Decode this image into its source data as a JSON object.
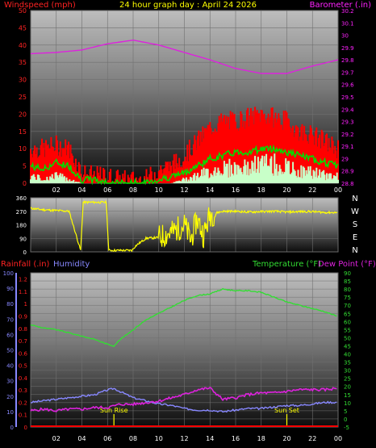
{
  "header": {
    "title": "24 hour graph day : April 24 2026",
    "left_label": "Windspeed (mph)",
    "right_label": "Barometer (.in)"
  },
  "colors": {
    "wind_gust": "#ff0000",
    "wind_avg": "#00dd00",
    "wind_min": "#c8ffc8",
    "barometer": "#dd22dd",
    "direction": "#ffff00",
    "temperature": "#33dd33",
    "dewpoint": "#dd22dd",
    "humidity": "#8888ff",
    "rainfall": "#ff0000",
    "sun_marker": "#ffff00",
    "grid": "#707070"
  },
  "chart_data": [
    {
      "type": "line",
      "title": "24 hour graph day : April 24 2026",
      "x_ticks": [
        "02",
        "04",
        "06",
        "08",
        "10",
        "12",
        "14",
        "16",
        "18",
        "20",
        "22",
        "00"
      ],
      "y_left": {
        "label": "Windspeed (mph)",
        "ticks": [
          0,
          5,
          10,
          15,
          20,
          25,
          30,
          35,
          40,
          45,
          50
        ],
        "range": [
          0,
          50
        ]
      },
      "y_right": {
        "label": "Barometer (.in)",
        "ticks": [
          "28.8",
          "28.9",
          "29",
          "29.1",
          "29.2",
          "29.3",
          "29.4",
          "29.5",
          "29.6",
          "29.7",
          "29.8",
          "29.9",
          "30",
          "30.1",
          "30.2"
        ],
        "range": [
          28.8,
          30.2
        ]
      },
      "series": [
        {
          "name": "Barometer",
          "axis": "right",
          "x": [
            0,
            2,
            4,
            6,
            8,
            10,
            12,
            14,
            16,
            18,
            20,
            22,
            24
          ],
          "values": [
            29.85,
            29.86,
            29.88,
            29.93,
            29.96,
            29.92,
            29.86,
            29.8,
            29.73,
            29.69,
            29.69,
            29.75,
            29.8
          ]
        },
        {
          "name": "Gust",
          "axis": "left",
          "x": [
            0,
            1,
            2,
            3,
            4,
            5,
            6,
            7,
            8,
            9,
            10,
            11,
            12,
            13,
            14,
            15,
            16,
            17,
            18,
            19,
            20,
            21,
            22,
            23,
            24
          ],
          "values": [
            10,
            10,
            11,
            10,
            3,
            2,
            2,
            1,
            1,
            1,
            4,
            5,
            8,
            12,
            16,
            18,
            18,
            19,
            20,
            19,
            18,
            15,
            14,
            12,
            10
          ]
        },
        {
          "name": "Average",
          "axis": "left",
          "x": [
            0,
            1,
            2,
            3,
            4,
            5,
            6,
            7,
            8,
            9,
            10,
            11,
            12,
            13,
            14,
            15,
            16,
            17,
            18,
            19,
            20,
            21,
            22,
            23,
            24
          ],
          "values": [
            5,
            4,
            6,
            5,
            1,
            1,
            0,
            0,
            0,
            0,
            1,
            2,
            3,
            5,
            7,
            8,
            9,
            9,
            10,
            10,
            9,
            8,
            7,
            6,
            5
          ]
        },
        {
          "name": "Minimum",
          "axis": "left",
          "x": [
            0,
            1,
            2,
            3,
            4,
            5,
            6,
            7,
            8,
            9,
            10,
            11,
            12,
            13,
            14,
            15,
            16,
            17,
            18,
            19,
            20,
            21,
            22,
            23,
            24
          ],
          "values": [
            2,
            1,
            2,
            1,
            0,
            0,
            0,
            0,
            0,
            0,
            0,
            0,
            1,
            2,
            3,
            4,
            4,
            4,
            5,
            5,
            4,
            3,
            3,
            2,
            2
          ]
        }
      ]
    },
    {
      "type": "scatter",
      "title": "",
      "x_ticks": [
        "02",
        "04",
        "06",
        "08",
        "10",
        "12",
        "14",
        "16",
        "18",
        "20",
        "22",
        "00"
      ],
      "y_left": {
        "ticks": [
          0,
          90,
          180,
          270,
          360
        ],
        "range": [
          0,
          360
        ]
      },
      "y_right": {
        "ticks": [
          "N",
          "W",
          "S",
          "E",
          "N"
        ]
      },
      "series": [
        {
          "name": "Wind direction",
          "x": [
            0,
            1,
            2,
            3,
            3.9,
            4.1,
            5,
            5.9,
            6.1,
            7,
            7.9,
            8.2,
            9,
            10,
            11,
            12,
            12.5,
            13,
            13.5,
            14,
            15,
            16,
            17,
            18,
            19,
            20,
            21,
            22,
            23,
            24
          ],
          "values": [
            290,
            280,
            275,
            270,
            10,
            330,
            330,
            330,
            10,
            10,
            10,
            40,
            90,
            95,
            130,
            180,
            80,
            220,
            110,
            250,
            270,
            270,
            265,
            268,
            270,
            265,
            268,
            268,
            262,
            262
          ]
        }
      ]
    },
    {
      "type": "line",
      "title": "",
      "x_ticks": [
        "02",
        "04",
        "06",
        "08",
        "10",
        "12",
        "14",
        "16",
        "18",
        "20",
        "22",
        "00"
      ],
      "legend": [
        "Rainfall (.in)",
        "Humidity",
        "Temperature (°F)",
        "Dew Point (°F)"
      ],
      "y_rain": {
        "ticks": [
          "0",
          "0.1",
          "0.2",
          "0.3",
          "0.4",
          "0.5",
          "0.6",
          "0.7",
          "0.8",
          "0.9",
          "1",
          "1.1",
          "1.2"
        ],
        "range": [
          0,
          1.25
        ]
      },
      "y_humidity": {
        "ticks": [
          0,
          10,
          20,
          30,
          40,
          50,
          60,
          70,
          80,
          90,
          100
        ],
        "range": [
          0,
          100
        ]
      },
      "y_temp": {
        "ticks": [
          -5,
          0,
          5,
          10,
          15,
          20,
          25,
          30,
          35,
          40,
          45,
          50,
          55,
          60,
          65,
          70,
          75,
          80,
          85,
          90
        ],
        "range": [
          -5,
          90
        ]
      },
      "annotations": [
        {
          "label": "Sun Rise",
          "x": 6.5
        },
        {
          "label": "Sun Set",
          "x": 20
        }
      ],
      "series": [
        {
          "name": "Temperature",
          "axis": "temp",
          "x": [
            0,
            1,
            2,
            3,
            4,
            5,
            6,
            6.5,
            7,
            8,
            9,
            10,
            11,
            12,
            13,
            14,
            15,
            16,
            17,
            18,
            19,
            20,
            21,
            22,
            23,
            24
          ],
          "values": [
            58,
            56,
            55,
            53,
            51,
            49,
            46,
            45,
            49,
            55,
            61,
            65,
            69,
            73,
            76,
            77,
            80,
            79,
            79,
            78,
            75,
            72,
            70,
            68,
            66,
            63
          ]
        },
        {
          "name": "Dew Point",
          "axis": "temp",
          "x": [
            0,
            1,
            2,
            3,
            4,
            5,
            6,
            7,
            8,
            9,
            10,
            11,
            12,
            13,
            14,
            15,
            16,
            17,
            18,
            19,
            20,
            21,
            22,
            23,
            24
          ],
          "values": [
            5,
            6,
            5,
            6,
            6,
            7,
            7,
            9,
            9,
            10,
            11,
            13,
            15,
            18,
            19,
            12,
            13,
            15,
            16,
            16,
            17,
            18,
            18,
            18,
            19
          ]
        },
        {
          "name": "Humidity",
          "axis": "humidity",
          "x": [
            0,
            1,
            2,
            3,
            4,
            5,
            6,
            6.5,
            7,
            8,
            9,
            10,
            11,
            12,
            13,
            14,
            15,
            16,
            17,
            18,
            19,
            20,
            21,
            22,
            23,
            24
          ],
          "values": [
            16,
            17,
            18,
            19,
            20,
            21,
            24,
            25,
            23,
            19,
            17,
            15,
            14,
            12,
            11,
            11,
            10,
            11,
            12,
            12,
            13,
            14,
            14,
            15,
            16,
            16
          ]
        },
        {
          "name": "Rainfall",
          "axis": "rain",
          "x": [
            0,
            24
          ],
          "values": [
            0,
            0
          ]
        }
      ]
    }
  ]
}
